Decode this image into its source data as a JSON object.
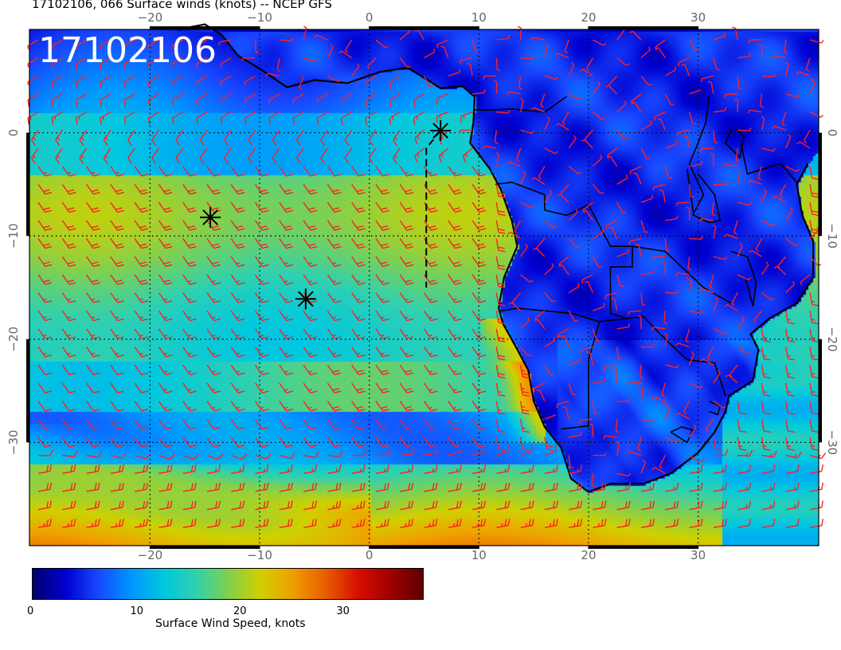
{
  "title": "17102106, 066 Surface winds (knots) -- NCEP GFS",
  "date_stamp": "17102106",
  "map": {
    "lon_range": [
      -31,
      41
    ],
    "lat_range": [
      -40,
      10
    ],
    "lon_ticks": [
      -20,
      -10,
      0,
      10,
      20,
      30
    ],
    "lat_ticks": [
      0,
      -10,
      -20,
      -30
    ],
    "lon_tick_labels": [
      "−20",
      "−10",
      "0",
      "10",
      "20",
      "30"
    ],
    "lat_tick_labels": [
      "0",
      "−10",
      "−20",
      "−30"
    ],
    "grid": "dotted",
    "barb_color": "#ff2020",
    "coast_color": "#000000",
    "storm_markers": [
      {
        "lon": 6.5,
        "lat": 0.2
      },
      {
        "lon": -14.5,
        "lat": -8.2
      },
      {
        "lon": -5.8,
        "lat": -16.1
      }
    ],
    "track": [
      [
        6.5,
        0.2
      ],
      [
        5.2,
        -1.5
      ],
      [
        5.2,
        -15.0
      ]
    ]
  },
  "colorbar": {
    "title": "Surface Wind Speed, knots",
    "range": [
      0,
      38
    ],
    "ticks": [
      "0",
      "10",
      "20",
      "30"
    ],
    "tick_values": [
      0,
      10,
      20,
      30
    ],
    "colors": [
      "#000070",
      "#0000d0",
      "#1848ff",
      "#0096ff",
      "#00c8e0",
      "#30d0b0",
      "#80d050",
      "#d0d000",
      "#f0a000",
      "#e86000",
      "#d81000",
      "#a00000",
      "#600000"
    ]
  }
}
